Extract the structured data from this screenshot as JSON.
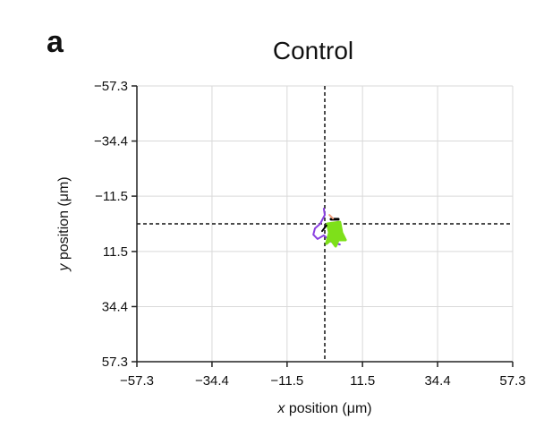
{
  "chart_data": {
    "type": "line",
    "panel_label": "a",
    "title": "Control",
    "xlabel_italic": "x",
    "xlabel_rest": " position (μm)",
    "ylabel_italic": "y",
    "ylabel_rest": " position (μm)",
    "xlim": [
      -57.3,
      57.3
    ],
    "ylim": [
      -57.3,
      57.3
    ],
    "y_inverted": true,
    "grid": true,
    "xticks": [
      -57.3,
      -34.4,
      -11.5,
      11.5,
      34.4,
      57.3
    ],
    "yticks": [
      -57.3,
      -34.4,
      -11.5,
      11.5,
      34.4,
      57.3
    ],
    "xtick_labels": [
      "−57.3",
      "−34.4",
      "−11.5",
      "11.5",
      "34.4",
      "57.3"
    ],
    "ytick_labels": [
      "−57.3",
      "−34.4",
      "−11.5",
      "11.5",
      "34.4",
      "57.3"
    ],
    "reference_lines": {
      "x": 0,
      "y": 0
    },
    "series": [
      {
        "name": "track-purple",
        "color": "#8a3fe0",
        "width": 2,
        "fill": false,
        "x": [
          -0.3,
          0,
          -1.4,
          -3,
          -3.5,
          -2.2,
          -0.3,
          1.9,
          4.6
        ],
        "y": [
          -6.3,
          -3.7,
          0,
          1.9,
          4.5,
          6.3,
          4.8,
          7.4,
          8.6
        ]
      },
      {
        "name": "track-green",
        "color": "#7ee01a",
        "width": 3,
        "fill": true,
        "x": [
          0.8,
          4.6,
          5.2,
          6.3,
          4.1,
          3.3,
          1.9,
          0.5,
          1.4,
          0.8
        ],
        "y": [
          0,
          -0.7,
          3.7,
          6.7,
          6.7,
          9.3,
          6.7,
          8.2,
          3.7,
          0
        ]
      },
      {
        "name": "track-black-1",
        "color": "#000000",
        "width": 3,
        "fill": false,
        "x": [
          1.9,
          4.1
        ],
        "y": [
          -1.9,
          -1.9
        ]
      },
      {
        "name": "track-black-2",
        "color": "#000000",
        "width": 2,
        "fill": false,
        "x": [
          -0.8,
          0.5
        ],
        "y": [
          3,
          0.7
        ]
      },
      {
        "name": "track-salmon",
        "color": "#f0a080",
        "width": 2,
        "fill": false,
        "x": [
          1.4,
          2.5
        ],
        "y": [
          -3.7,
          -2.2
        ]
      }
    ]
  }
}
